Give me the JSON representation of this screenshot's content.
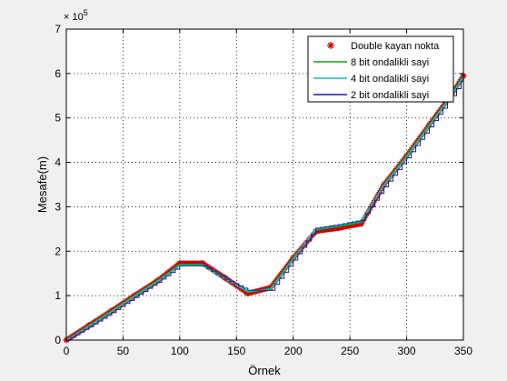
{
  "chart_data": {
    "type": "line",
    "title": "",
    "xlabel": "Örnek",
    "ylabel": "Mesafe(m)",
    "exponent_label": "× 10",
    "exponent_power": "5",
    "xlim": [
      0,
      350
    ],
    "ylim": [
      0,
      7
    ],
    "xticks": [
      0,
      50,
      100,
      150,
      200,
      250,
      300,
      350
    ],
    "yticks": [
      0,
      1,
      2,
      3,
      4,
      5,
      6,
      7
    ],
    "grid": true,
    "legend_position": "top-right",
    "x": [
      0,
      20,
      40,
      60,
      80,
      100,
      120,
      140,
      160,
      180,
      200,
      220,
      240,
      260,
      280,
      300,
      320,
      340,
      350
    ],
    "series": [
      {
        "name": "Double kayan nokta",
        "style": "markers",
        "marker": "*",
        "color": "#d00000",
        "values": [
          0,
          0.33,
          0.66,
          1.0,
          1.33,
          1.73,
          1.73,
          1.4,
          1.05,
          1.18,
          1.85,
          2.45,
          2.52,
          2.62,
          3.5,
          4.15,
          4.85,
          5.55,
          5.95
        ]
      },
      {
        "name": "8 bit ondalikli sayi",
        "style": "line",
        "color": "#00b000",
        "values": [
          0,
          0.33,
          0.66,
          1.0,
          1.33,
          1.7,
          1.7,
          1.4,
          1.08,
          1.16,
          1.85,
          2.48,
          2.56,
          2.65,
          3.5,
          4.15,
          4.85,
          5.55,
          5.95
        ]
      },
      {
        "name": "4 bit ondalikli sayi",
        "style": "line",
        "color": "#00c8c8",
        "values": [
          0,
          0.31,
          0.64,
          0.98,
          1.31,
          1.68,
          1.68,
          1.38,
          1.1,
          1.14,
          1.82,
          2.5,
          2.58,
          2.68,
          3.48,
          4.12,
          4.82,
          5.52,
          5.92
        ]
      },
      {
        "name": "2 bit ondalikli sayi",
        "style": "step",
        "color": "#1a1aa8",
        "values": [
          0,
          0.3,
          0.62,
          0.96,
          1.3,
          1.67,
          1.67,
          1.37,
          1.12,
          1.12,
          1.8,
          2.52,
          2.6,
          2.7,
          3.45,
          4.1,
          4.8,
          5.5,
          5.9
        ]
      }
    ]
  }
}
